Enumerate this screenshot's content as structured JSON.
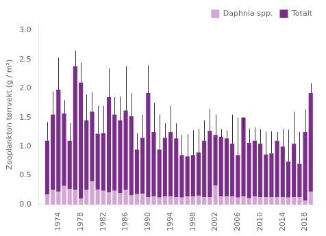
{
  "chart_data": {
    "type": "bar",
    "stacked": true,
    "y_label": "Zooplankton tørrvekt (g / m²)",
    "x": [
      1972,
      1973,
      1974,
      1975,
      1976,
      1977,
      1978,
      1979,
      1980,
      1981,
      1982,
      1983,
      1984,
      1985,
      1986,
      1987,
      1988,
      1989,
      1990,
      1991,
      1992,
      1993,
      1994,
      1995,
      1996,
      1997,
      1998,
      1999,
      2000,
      2001,
      2002,
      2003,
      2004,
      2005,
      2006,
      2007,
      2008,
      2009,
      2010,
      2011,
      2012,
      2013,
      2014,
      2015,
      2016,
      2017,
      2018,
      2019
    ],
    "series": [
      {
        "name": "Daphnia spp.",
        "color": "#d5a5d5",
        "values": [
          0.17,
          0.25,
          0.22,
          0.32,
          0.27,
          0.25,
          0.1,
          0.25,
          0.4,
          0.26,
          0.24,
          0.21,
          0.24,
          0.2,
          0.25,
          0.16,
          0.18,
          0.19,
          0.13,
          0.14,
          0.12,
          0.14,
          0.14,
          0.13,
          0.12,
          0.14,
          0.14,
          0.15,
          0.13,
          0.13,
          0.33,
          0.14,
          0.14,
          0.14,
          0.12,
          0.14,
          0.11,
          0.14,
          0.13,
          0.13,
          0.13,
          0.13,
          0.13,
          0.12,
          0.13,
          0.13,
          0.07,
          0.22
        ]
      },
      {
        "name": "Totalt",
        "color": "#7B2D8B",
        "values": [
          0.93,
          1.3,
          1.76,
          1.25,
          0.83,
          2.13,
          2.0,
          1.2,
          1.2,
          0.96,
          0.99,
          1.64,
          1.31,
          1.25,
          1.37,
          1.36,
          0.77,
          0.96,
          1.79,
          1.11,
          0.83,
          1.01,
          1.11,
          1.01,
          0.73,
          0.69,
          0.71,
          0.75,
          0.97,
          1.14,
          0.87,
          1.03,
          1.0,
          0.91,
          0.73,
          1.36,
          0.95,
          0.96,
          0.92,
          0.73,
          0.75,
          0.97,
          0.87,
          0.62,
          0.92,
          0.57,
          1.18,
          1.7
        ],
        "error_upper": [
          1.42,
          1.95,
          2.53,
          1.8,
          1.4,
          2.65,
          2.45,
          1.9,
          1.93,
          1.7,
          1.7,
          2.35,
          1.85,
          1.86,
          2.38,
          1.92,
          1.23,
          1.55,
          2.4,
          1.75,
          1.55,
          1.4,
          1.7,
          1.4,
          1.2,
          1.21,
          1.28,
          1.3,
          1.45,
          1.65,
          1.55,
          1.3,
          1.28,
          1.55,
          1.5,
          1.3,
          1.31,
          1.33,
          1.3,
          1.26,
          1.26,
          1.25,
          1.3,
          1.29,
          1.6,
          1.25,
          1.64,
          2.09
        ]
      }
    ],
    "xlim": [
      1970.5,
      2020.5
    ],
    "xticks": [
      1974,
      1978,
      1982,
      1986,
      1990,
      1994,
      1998,
      2002,
      2006,
      2010,
      2014,
      2018
    ],
    "ylim": [
      0,
      3.1
    ],
    "yticks": [
      {
        "value": 0,
        "label": "0.0"
      },
      0.5,
      {
        "value": 1,
        "label": "1.0"
      },
      1.5,
      {
        "value": 2,
        "label": "2.0"
      },
      2.5,
      {
        "value": 3,
        "label": "3.0"
      }
    ],
    "grid": false,
    "legend": "upper right"
  }
}
